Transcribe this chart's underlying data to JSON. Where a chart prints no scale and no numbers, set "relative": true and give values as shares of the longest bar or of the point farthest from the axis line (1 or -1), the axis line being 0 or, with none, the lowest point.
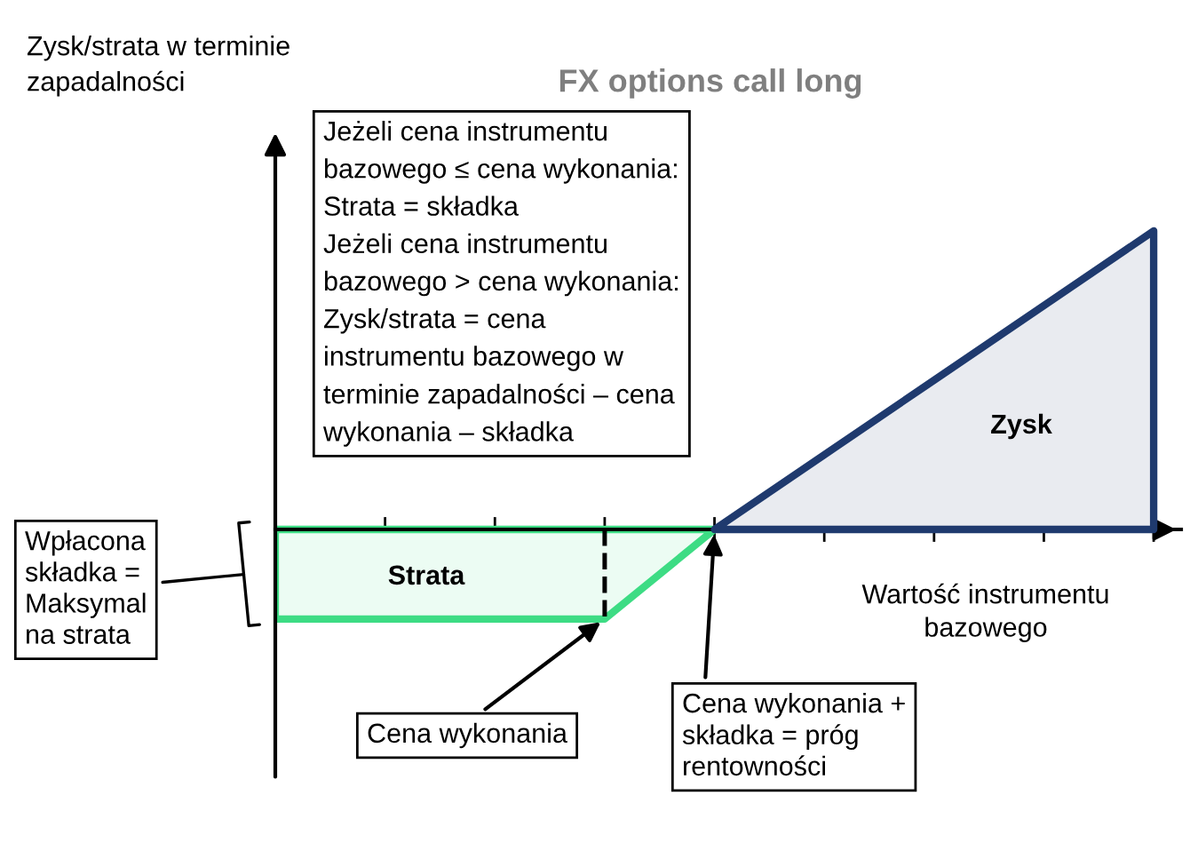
{
  "chart_data": {
    "type": "area",
    "relative": true,
    "title": "FX options call long",
    "xlabel": "Wartość instrumentu\nbazowego",
    "ylabel": "Zysk/strata w terminie\nzapadalności",
    "categories": [
      null,
      null,
      null,
      null,
      null,
      null,
      null,
      null,
      null
    ],
    "series": [
      {
        "color": "#3ddc84",
        "values": [
          -0.3,
          -0.3,
          -0.3,
          -0.3,
          0,
          null,
          null,
          null,
          null
        ]
      },
      {
        "color": "#1f3a6e",
        "values": [
          null,
          null,
          null,
          null,
          0,
          0.25,
          0.5,
          0.75,
          1
        ]
      }
    ],
    "annotations": [
      "Jeżeli cena instrumentu\nbazowego ≤ cena wykonania:\nStrata = składka\nJeżeli cena instrumentu\nbazowego > cena wykonania:\nZysk/strata = cena\ninstrumentu bazowego w\nterminie zapadalności – cena\nwykonania – składka",
      "Wpłacona\nskładka =\nMaksymal\nna strata",
      "Cena wykonania",
      "Cena wykonania +\nskładka = próg\nrentowności",
      "Strata",
      "Zysk"
    ]
  }
}
